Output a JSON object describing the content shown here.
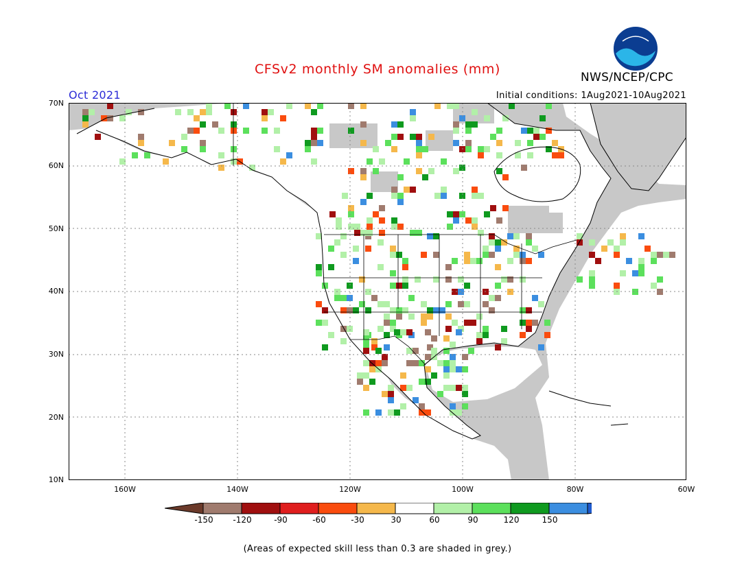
{
  "title": "CFSv2 monthly SM anomalies (mm)",
  "agency": "NWS/NCEP/CPC",
  "valid_month": "Oct 2021",
  "initial_conditions": "Initial conditions: 1Aug2021-10Aug2021",
  "logo_text": "NOAA",
  "note": "(Areas of expected skill less than 0.3 are shaded in grey.)",
  "lat_labels": [
    "70N",
    "60N",
    "50N",
    "40N",
    "30N",
    "20N",
    "10N"
  ],
  "lon_labels": [
    "160W",
    "140W",
    "120W",
    "100W",
    "80W",
    "60W"
  ],
  "colorbar": {
    "labels": [
      "-150",
      "-120",
      "-90",
      "-60",
      "-30",
      "30",
      "60",
      "90",
      "120",
      "150"
    ],
    "colors": [
      "#6b3a2a",
      "#a07b6e",
      "#a00f0f",
      "#e01e1e",
      "#fa4c0e",
      "#f5b84b",
      "#ffffff",
      "#b2f0a8",
      "#5ce05c",
      "#0f9a1f",
      "#3b8ee0",
      "#1f5bcf"
    ]
  },
  "colors": {
    "ocean": "#ffffff",
    "no_skill_grey": "#c8c8c8",
    "title_red": "#e01010",
    "month_blue": "#2b2bd6"
  }
}
